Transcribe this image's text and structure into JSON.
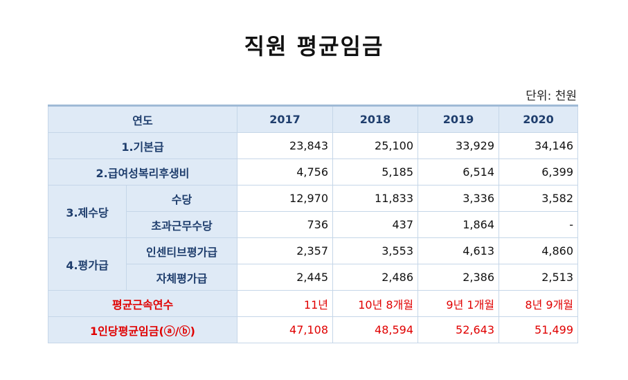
{
  "title": "직원 평균임금",
  "unit": "단위: 천원",
  "header": {
    "label": "연도",
    "years": [
      "2017",
      "2018",
      "2019",
      "2020"
    ]
  },
  "rows": {
    "base_pay": {
      "label": "1.기본급",
      "values": [
        "23,843",
        "25,100",
        "33,929",
        "34,146"
      ]
    },
    "welfare": {
      "label": "2.급여성복리후생비",
      "values": [
        "4,756",
        "5,185",
        "6,514",
        "6,399"
      ]
    },
    "allowance_group": "3.제수당",
    "allowance": {
      "label": "수당",
      "values": [
        "12,970",
        "11,833",
        "3,336",
        "3,582"
      ]
    },
    "overtime": {
      "label": "초과근무수당",
      "values": [
        "736",
        "437",
        "1,864",
        "-"
      ]
    },
    "eval_group": "4.평가급",
    "incentive": {
      "label": "인센티브평가급",
      "values": [
        "2,357",
        "3,553",
        "4,613",
        "4,860"
      ]
    },
    "self_eval": {
      "label": "자체평가급",
      "values": [
        "2,445",
        "2,486",
        "2,386",
        "2,513"
      ]
    },
    "tenure": {
      "label": "평균근속연수",
      "values": [
        "11년",
        "10년 8개월",
        "9년 1개월",
        "8년 9개월"
      ]
    },
    "avg_wage": {
      "label": "1인당평균임금(ⓐ/ⓑ)",
      "values": [
        "47,108",
        "48,594",
        "52,643",
        "51,499"
      ]
    }
  }
}
